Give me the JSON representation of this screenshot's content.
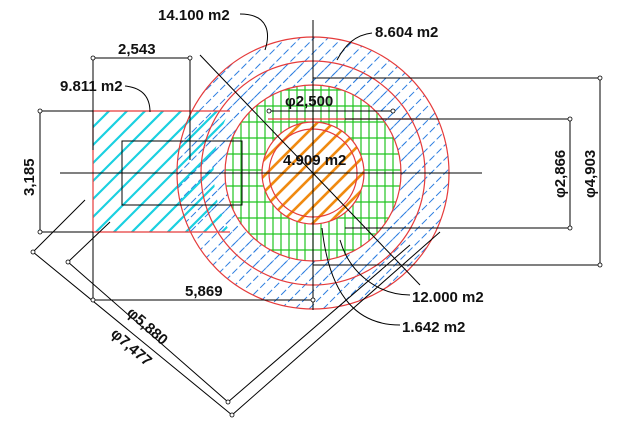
{
  "areas": {
    "outer_ring": "14.100 m2",
    "middle_ring": "8.604 m2",
    "side_block": "9.811 m2",
    "inner_disc": "4.909 m2",
    "green_ring": "12.000 m2",
    "orange_ring": "1.642 m2"
  },
  "dimensions": {
    "block_width": "2,543",
    "block_height": "3,185",
    "inner_diameter": "φ2,500",
    "dia_2866": "φ2,866",
    "dia_4903": "φ4,903",
    "length_5869": "5,869",
    "dia_5880": "φ5,880",
    "dia_7477": "φ7,477"
  },
  "colors": {
    "outline_red": "#e53b3b",
    "hatch_blue": "#2f7fe0",
    "hatch_cyan": "#1ad0e0",
    "hatch_green": "#22c422",
    "hatch_orange": "#f08a10"
  }
}
